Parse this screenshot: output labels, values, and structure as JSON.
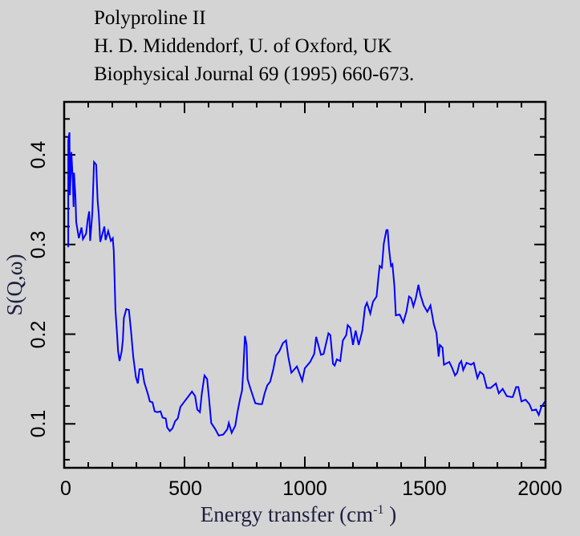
{
  "chart_data": {
    "type": "line",
    "title_lines": [
      "Polyproline II",
      "H. D. Middendorf, U. of Oxford, UK",
      "Biophysical Journal 69 (1995) 660-673."
    ],
    "xlabel": "Energy transfer (cm",
    "xlabel_sup": "-1",
    "xlabel_end": " )",
    "ylabel": "S(Q,ω)",
    "xlim": [
      0,
      2000
    ],
    "ylim": [
      0.051,
      0.459
    ],
    "xticks": [
      "0",
      "500",
      "1000",
      "1500",
      "2000"
    ],
    "yticks": [
      "0.1",
      "0.2",
      "0.3",
      "0.4"
    ],
    "grid": false,
    "line_color": "#0000ff",
    "series": [
      {
        "name": "S(Q,w)",
        "x": [
          17,
          17,
          22,
          24,
          30,
          36,
          39,
          41,
          47,
          50,
          61,
          72,
          78,
          91,
          98,
          104,
          108,
          117,
          124,
          133,
          136,
          139,
          144,
          150,
          167,
          172,
          183,
          194,
          202,
          206,
          209,
          213,
          219,
          224,
          230,
          239,
          244,
          248,
          258,
          269,
          278,
          287,
          298,
          306,
          313,
          324,
          333,
          347,
          356,
          367,
          376,
          387,
          400,
          409,
          422,
          428,
          439,
          450,
          461,
          472,
          483,
          500,
          517,
          531,
          544,
          553,
          564,
          572,
          583,
          594,
          602,
          611,
          628,
          642,
          661,
          678,
          684,
          696,
          711,
          720,
          731,
          739,
          744,
          751,
          758,
          762,
          772,
          783,
          794,
          811,
          822,
          833,
          844,
          856,
          869,
          880,
          894,
          909,
          922,
          931,
          944,
          967,
          989,
          1000,
          1022,
          1039,
          1047,
          1067,
          1078,
          1098,
          1106,
          1117,
          1124,
          1133,
          1147,
          1158,
          1172,
          1178,
          1189,
          1200,
          1211,
          1224,
          1239,
          1250,
          1258,
          1272,
          1283,
          1298,
          1306,
          1311,
          1320,
          1328,
          1339,
          1344,
          1350,
          1358,
          1364,
          1372,
          1378,
          1394,
          1409,
          1422,
          1433,
          1442,
          1451,
          1461,
          1472,
          1480,
          1494,
          1509,
          1522,
          1536,
          1547,
          1556,
          1561,
          1572,
          1578,
          1600,
          1611,
          1624,
          1633,
          1642,
          1650,
          1658,
          1672,
          1691,
          1702,
          1717,
          1728,
          1742,
          1756,
          1772,
          1794,
          1806,
          1822,
          1839,
          1856,
          1864,
          1878,
          1887,
          1900,
          1917,
          1933,
          1944,
          1961,
          1972,
          1983,
          1998
        ],
        "y": [
          0.297,
          0.416,
          0.425,
          0.355,
          0.403,
          0.37,
          0.342,
          0.38,
          0.352,
          0.325,
          0.307,
          0.319,
          0.306,
          0.312,
          0.328,
          0.337,
          0.304,
          0.335,
          0.392,
          0.389,
          0.369,
          0.349,
          0.333,
          0.303,
          0.32,
          0.305,
          0.315,
          0.304,
          0.307,
          0.293,
          0.266,
          0.227,
          0.203,
          0.181,
          0.17,
          0.181,
          0.194,
          0.218,
          0.228,
          0.227,
          0.203,
          0.175,
          0.152,
          0.145,
          0.161,
          0.161,
          0.146,
          0.134,
          0.125,
          0.124,
          0.114,
          0.113,
          0.114,
          0.107,
          0.106,
          0.096,
          0.092,
          0.095,
          0.103,
          0.106,
          0.119,
          0.125,
          0.131,
          0.136,
          0.131,
          0.116,
          0.113,
          0.134,
          0.154,
          0.15,
          0.128,
          0.101,
          0.094,
          0.087,
          0.088,
          0.094,
          0.101,
          0.09,
          0.098,
          0.113,
          0.128,
          0.137,
          0.158,
          0.198,
          0.188,
          0.15,
          0.141,
          0.132,
          0.123,
          0.122,
          0.122,
          0.134,
          0.143,
          0.147,
          0.161,
          0.176,
          0.181,
          0.19,
          0.193,
          0.175,
          0.157,
          0.164,
          0.148,
          0.162,
          0.169,
          0.178,
          0.197,
          0.177,
          0.178,
          0.201,
          0.199,
          0.167,
          0.165,
          0.172,
          0.17,
          0.193,
          0.199,
          0.21,
          0.207,
          0.188,
          0.204,
          0.188,
          0.204,
          0.23,
          0.235,
          0.223,
          0.236,
          0.242,
          0.264,
          0.276,
          0.274,
          0.301,
          0.316,
          0.316,
          0.295,
          0.276,
          0.278,
          0.254,
          0.221,
          0.222,
          0.213,
          0.225,
          0.242,
          0.24,
          0.231,
          0.24,
          0.255,
          0.244,
          0.232,
          0.225,
          0.232,
          0.211,
          0.201,
          0.175,
          0.188,
          0.185,
          0.166,
          0.169,
          0.163,
          0.154,
          0.157,
          0.167,
          0.17,
          0.16,
          0.168,
          0.166,
          0.168,
          0.151,
          0.158,
          0.155,
          0.14,
          0.14,
          0.145,
          0.134,
          0.139,
          0.131,
          0.13,
          0.13,
          0.141,
          0.141,
          0.125,
          0.127,
          0.122,
          0.115,
          0.116,
          0.11,
          0.119,
          0.125
        ]
      }
    ]
  }
}
